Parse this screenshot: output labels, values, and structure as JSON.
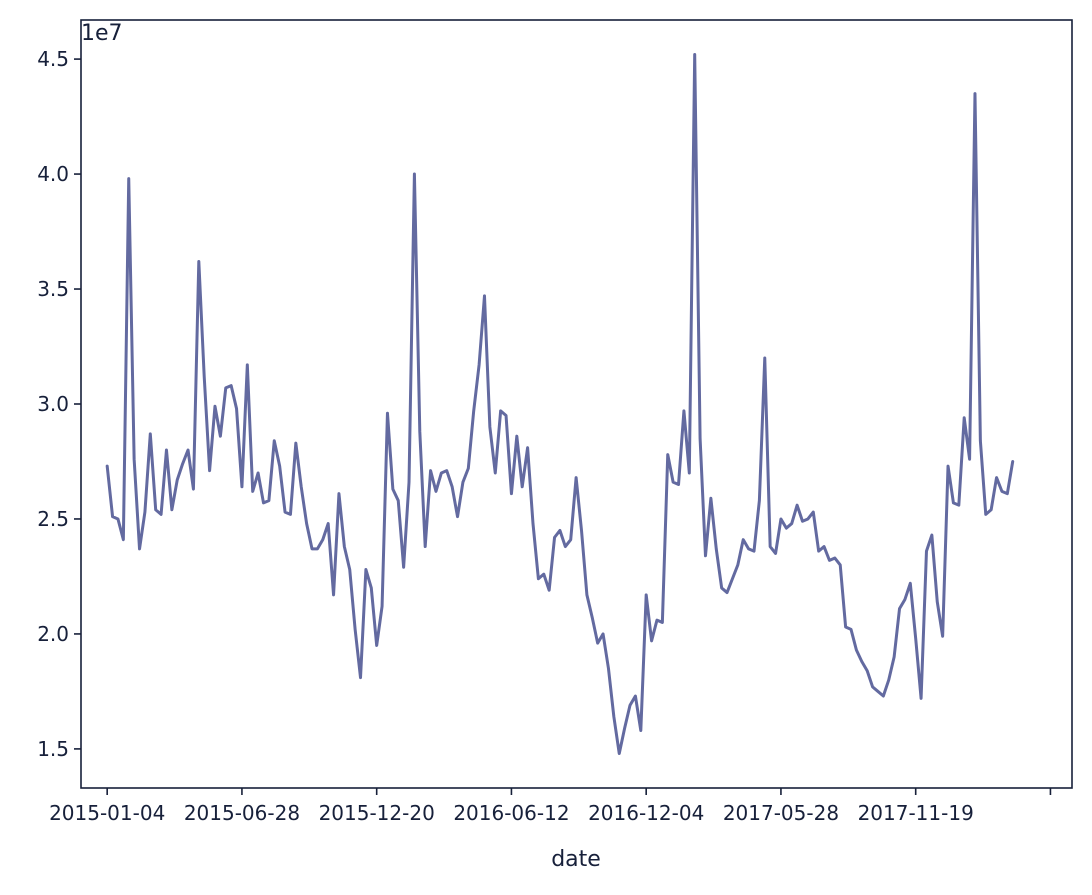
{
  "chart_data": {
    "type": "line",
    "title": "",
    "xlabel": "date",
    "ylabel": "",
    "y_offset_label": "1e7",
    "y_multiplier": 10000000,
    "ylim": [
      1.33,
      4.67
    ],
    "y_ticks": [
      1.5,
      2.0,
      2.5,
      3.0,
      3.5,
      4.0,
      4.5
    ],
    "y_tick_labels": [
      "1.5",
      "2.0",
      "2.5",
      "3.0",
      "3.5",
      "4.0",
      "4.5"
    ],
    "x_tick_labels": [
      "2015-01-04",
      "2015-06-28",
      "2015-12-20",
      "2016-06-12",
      "2016-12-04",
      "2017-05-28",
      "2017-11-19"
    ],
    "x_tick_extra": [
      "",
      ""
    ],
    "xlim": [
      "2014-12-01",
      "2018-06-10"
    ],
    "grid": false,
    "legend": "none",
    "line_color": "#636aa0",
    "axis_color": "#17203a",
    "series": [
      {
        "start": "2015-01-04",
        "step_days": 7,
        "values": [
          2.73,
          2.51,
          2.5,
          2.41,
          3.98,
          2.76,
          2.37,
          2.53,
          2.87,
          2.54,
          2.52,
          2.8,
          2.54,
          2.67,
          2.74,
          2.8,
          2.63,
          3.62,
          3.12,
          2.71,
          2.99,
          2.86,
          3.07,
          3.08,
          2.98,
          2.64,
          3.17,
          2.62,
          2.7,
          2.57,
          2.58,
          2.84,
          2.73,
          2.53,
          2.52,
          2.83,
          2.64,
          2.48,
          2.37,
          2.37,
          2.41,
          2.48,
          2.17,
          2.61,
          2.38,
          2.28,
          2.02,
          1.81,
          2.28,
          2.2,
          1.95,
          2.12,
          2.96,
          2.63,
          2.58,
          2.29,
          2.66,
          4.0,
          2.88,
          2.38,
          2.71,
          2.62,
          2.7,
          2.71,
          2.64,
          2.51,
          2.66,
          2.72,
          2.97,
          3.17,
          3.47,
          2.9,
          2.7,
          2.97,
          2.95,
          2.61,
          2.86,
          2.64,
          2.81,
          2.48,
          2.24,
          2.26,
          2.19,
          2.42,
          2.45,
          2.38,
          2.41,
          2.68,
          2.45,
          2.17,
          2.07,
          1.96,
          2.0,
          1.85,
          1.64,
          1.48,
          1.59,
          1.69,
          1.73,
          1.58,
          2.17,
          1.97,
          2.06,
          2.05,
          2.78,
          2.66,
          2.65,
          2.97,
          2.7,
          4.52,
          2.85,
          2.34,
          2.59,
          2.37,
          2.2,
          2.18,
          2.24,
          2.3,
          2.41,
          2.37,
          2.36,
          2.58,
          3.2,
          2.38,
          2.35,
          2.5,
          2.46,
          2.48,
          2.56,
          2.49,
          2.5,
          2.53,
          2.36,
          2.38,
          2.32,
          2.33,
          2.3,
          2.03,
          2.02,
          1.93,
          1.88,
          1.84,
          1.77,
          1.75,
          1.73,
          1.8,
          1.9,
          2.11,
          2.15,
          2.22,
          1.98,
          1.72,
          2.36,
          2.43,
          2.14,
          1.99,
          2.73,
          2.57,
          2.56,
          2.94,
          2.76,
          4.35,
          2.84,
          2.52,
          2.54,
          2.68,
          2.62,
          2.61,
          2.75
        ]
      }
    ]
  }
}
